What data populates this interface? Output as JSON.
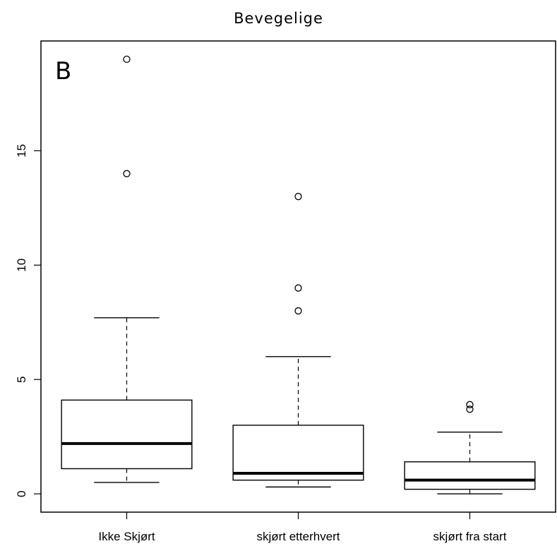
{
  "chart_data": {
    "type": "boxplot",
    "title": "Bevegelige",
    "panel_label": "B",
    "xlabel": "",
    "ylabel": "",
    "categories": [
      "Ikke Skjørt",
      "skjørt etterhvert",
      "skjørt fra start"
    ],
    "yticks": [
      "0",
      "5",
      "10",
      "15"
    ],
    "ylim": [
      -0.8,
      19.8
    ],
    "boxes": [
      {
        "whisker_low": 0.5,
        "q1": 1.1,
        "median": 2.2,
        "q3": 4.1,
        "whisker_high": 7.7,
        "outliers": [
          14,
          19
        ]
      },
      {
        "whisker_low": 0.3,
        "q1": 0.6,
        "median": 0.9,
        "q3": 3.0,
        "whisker_high": 6.0,
        "outliers": [
          8,
          9,
          13
        ]
      },
      {
        "whisker_low": 0.0,
        "q1": 0.2,
        "median": 0.6,
        "q3": 1.4,
        "whisker_high": 2.7,
        "outliers": [
          3.7,
          3.9
        ]
      }
    ],
    "grid": false
  }
}
